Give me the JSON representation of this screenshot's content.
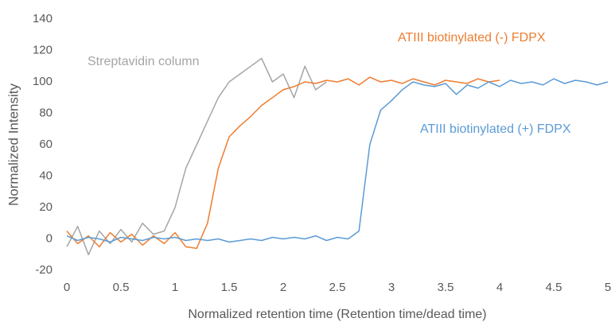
{
  "chart_data": {
    "type": "line",
    "x_label": "Normalized retention time (Retention time/dead time)",
    "y_label": "Normalized Intensity",
    "x": [
      0,
      0.1,
      0.2,
      0.3,
      0.4,
      0.5,
      0.6,
      0.7,
      0.8,
      0.9,
      1,
      1.1,
      1.2,
      1.3,
      1.4,
      1.5,
      1.6,
      1.7,
      1.8,
      1.9,
      2,
      2.1,
      2.2,
      2.3,
      2.4,
      2.5,
      2.6,
      2.7,
      2.8,
      2.9,
      3,
      3.1,
      3.2,
      3.3,
      3.4,
      3.5,
      3.6,
      3.7,
      3.8,
      3.9,
      4,
      4.1,
      4.2,
      4.3,
      4.4,
      4.5,
      4.6,
      4.7,
      4.8,
      4.9,
      5
    ],
    "series": [
      {
        "name": "Streptavidin column",
        "color": "#a5a5a5",
        "values": [
          -5,
          8,
          -10,
          5,
          -3,
          6,
          -2,
          10,
          3,
          5,
          20,
          45,
          60,
          75,
          90,
          100,
          105,
          110,
          115,
          100,
          105,
          90,
          110,
          95,
          100,
          null,
          null,
          null,
          null,
          null,
          null,
          null,
          null,
          null,
          null,
          null,
          null,
          null,
          null,
          null,
          null,
          null,
          null,
          null,
          null,
          null,
          null,
          null,
          null,
          null,
          null
        ]
      },
      {
        "name": "ATIII biotinylated (-) FDPX",
        "color": "#ed7d31",
        "values": [
          5,
          -3,
          2,
          -5,
          4,
          -2,
          3,
          -4,
          2,
          -3,
          4,
          -5,
          -6,
          10,
          45,
          65,
          72,
          78,
          85,
          90,
          95,
          97,
          100,
          99,
          101,
          100,
          102,
          98,
          103,
          100,
          101,
          99,
          102,
          100,
          98,
          101,
          100,
          99,
          102,
          100,
          101,
          null,
          null,
          null,
          null,
          null,
          null,
          null,
          null,
          null,
          null
        ]
      },
      {
        "name": "ATIII biotinylated (+) FDPX",
        "color": "#5b9bd5",
        "values": [
          2,
          -1,
          1,
          0,
          -2,
          1,
          0,
          -1,
          1,
          0,
          1,
          -1,
          0,
          -1,
          0,
          -2,
          -1,
          0,
          -1,
          1,
          0,
          1,
          0,
          2,
          -1,
          1,
          0,
          5,
          60,
          82,
          88,
          95,
          100,
          98,
          97,
          99,
          92,
          98,
          96,
          100,
          97,
          101,
          99,
          100,
          98,
          102,
          99,
          101,
          100,
          98,
          100
        ]
      }
    ],
    "xlim": [
      0,
      5
    ],
    "xticks": [
      0,
      0.5,
      1,
      1.5,
      2,
      2.5,
      3,
      3.5,
      4,
      4.5,
      5
    ],
    "ylim": [
      -20,
      140
    ],
    "yticks": [
      -20,
      0,
      20,
      40,
      60,
      80,
      100,
      120,
      140
    ],
    "grid": false
  }
}
